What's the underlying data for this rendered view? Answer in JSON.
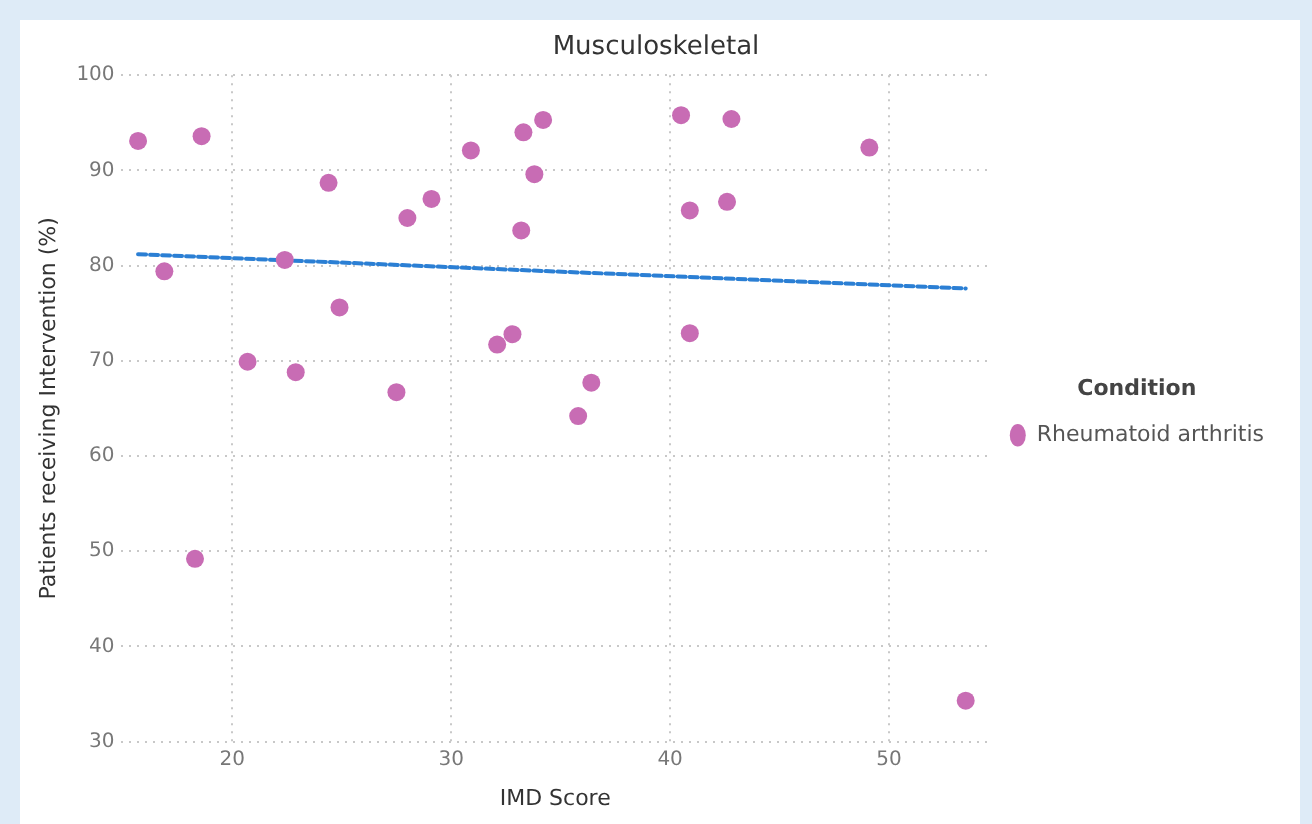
{
  "chart_data": {
    "type": "scatter",
    "title": "Musculoskeletal",
    "xlabel": "IMD Score",
    "ylabel": "Patients receiving Intervention (%)",
    "legend_title": "Condition",
    "legend": "right",
    "grid": true,
    "marker": "circle",
    "xlim": [
      14.9,
      54.6
    ],
    "xticks": [
      20,
      30,
      40,
      50
    ],
    "ylim": [
      30,
      100
    ],
    "yticks": [
      30,
      40,
      50,
      60,
      70,
      80,
      90,
      100
    ],
    "series": [
      {
        "name": "Rheumatoid arthritis",
        "color": "#c86cb4",
        "x": [
          15.7,
          18.6,
          16.9,
          22.4,
          24.4,
          24.9,
          20.7,
          22.9,
          27.5,
          28.0,
          29.1,
          30.9,
          33.3,
          34.2,
          33.8,
          33.2,
          32.1,
          32.8,
          36.4,
          35.8,
          40.5,
          42.8,
          49.1,
          40.9,
          42.6,
          40.9,
          18.3,
          53.5
        ],
        "values": [
          93.1,
          93.6,
          79.4,
          80.6,
          88.7,
          75.6,
          69.9,
          68.8,
          66.7,
          85.0,
          87.0,
          92.1,
          94.0,
          95.3,
          89.6,
          83.7,
          71.7,
          72.8,
          67.7,
          64.2,
          95.8,
          95.4,
          92.4,
          85.8,
          86.7,
          72.9,
          49.2,
          34.3
        ]
      },
      {
        "type": "line",
        "color": "#2b7fd4",
        "line_style": "dashed",
        "marker": "none",
        "x": [
          15.7,
          53.5
        ],
        "values": [
          81.2,
          77.6
        ]
      }
    ]
  }
}
